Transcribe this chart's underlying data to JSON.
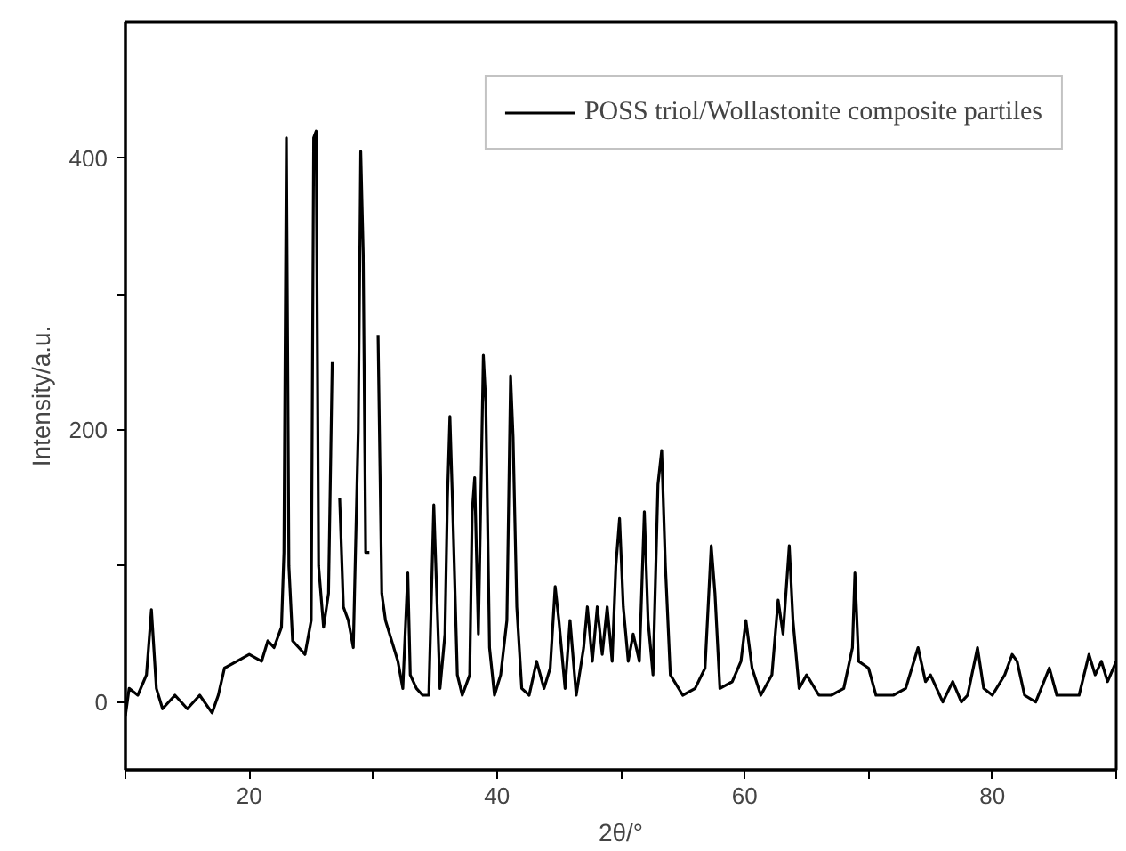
{
  "chart_data": {
    "type": "line",
    "xlabel": "2θ/°",
    "ylabel": "Intensity/a.u.",
    "xlim": [
      10,
      90
    ],
    "ylim": [
      -50,
      500
    ],
    "xticks": [
      {
        "value": 10,
        "label": null
      },
      20,
      {
        "value": 30,
        "label": null
      },
      40,
      {
        "value": 50,
        "label": null
      },
      60,
      {
        "value": 70,
        "label": null
      },
      80,
      {
        "value": 90,
        "label": null
      }
    ],
    "yticks": [
      0,
      {
        "value": 100,
        "label": null
      },
      200,
      {
        "value": 300,
        "label": null
      },
      400
    ],
    "grid": false,
    "legend": "top right",
    "marker": "none",
    "line_style": "solid",
    "series": [
      {
        "name": "POSS triol/Wollastonite composite partiles",
        "color": "#000000",
        "x": [
          10,
          10.3,
          11,
          11.7,
          12.1,
          12.5,
          13,
          14,
          15,
          16,
          17,
          17.5,
          18,
          19,
          20,
          21,
          21.5,
          22,
          22.6,
          22.8,
          23,
          23.2,
          23.5,
          24,
          24.5,
          25,
          25.2,
          25.4,
          25.6,
          26,
          26.4,
          26.7,
          26.9,
          27.1,
          27.3,
          27.6,
          28,
          28.4,
          28.8,
          29,
          29.2,
          29.4,
          29.7,
          29.9,
          30.2,
          30.4,
          30.7,
          31,
          31.5,
          32,
          32.4,
          32.8,
          33,
          33.5,
          34,
          34.5,
          34.9,
          35.1,
          35.4,
          35.8,
          36,
          36.2,
          36.4,
          36.8,
          37.2,
          37.8,
          38,
          38.2,
          38.5,
          38.9,
          39.1,
          39.4,
          39.8,
          40.3,
          40.8,
          41.1,
          41.3,
          41.6,
          42,
          42.6,
          43.2,
          43.8,
          44.3,
          44.7,
          45,
          45.5,
          45.9,
          46.4,
          47,
          47.3,
          47.7,
          48.1,
          48.5,
          48.9,
          49.3,
          49.6,
          49.9,
          50.2,
          50.6,
          51,
          51.5,
          51.9,
          52.2,
          52.6,
          53,
          53.3,
          53.6,
          54,
          55,
          56,
          56.8,
          57.3,
          57.6,
          58,
          59,
          59.7,
          60.1,
          60.6,
          61.3,
          62.2,
          62.7,
          63.1,
          63.6,
          63.9,
          64.4,
          65,
          66,
          67,
          68,
          68.7,
          68.9,
          69.2,
          70,
          70.6,
          72,
          73,
          74,
          74.6,
          75,
          76,
          76.8,
          77.5,
          78,
          78.8,
          79.3,
          80,
          81,
          81.6,
          82,
          82.6,
          83.5,
          84.6,
          85.2,
          86,
          87,
          87.8,
          88.3,
          88.8,
          89.3,
          90
        ],
        "values": [
          -10,
          10,
          5,
          20,
          68,
          10,
          -5,
          5,
          -5,
          5,
          -8,
          5,
          25,
          30,
          35,
          30,
          45,
          40,
          55,
          110,
          415,
          100,
          45,
          40,
          35,
          60,
          415,
          420,
          100,
          55,
          80,
          250,
          null,
          null,
          150,
          70,
          60,
          40,
          200,
          405,
          330,
          110,
          110,
          null,
          null,
          270,
          80,
          60,
          45,
          30,
          10,
          95,
          20,
          10,
          5,
          5,
          145,
          90,
          10,
          50,
          150,
          210,
          150,
          20,
          5,
          20,
          140,
          165,
          50,
          255,
          220,
          40,
          5,
          20,
          60,
          240,
          195,
          70,
          10,
          5,
          30,
          10,
          25,
          85,
          60,
          10,
          60,
          5,
          40,
          70,
          30,
          70,
          35,
          70,
          30,
          100,
          135,
          70,
          30,
          50,
          30,
          140,
          60,
          20,
          160,
          185,
          100,
          20,
          5,
          10,
          25,
          115,
          80,
          10,
          15,
          30,
          60,
          25,
          5,
          20,
          75,
          50,
          115,
          60,
          10,
          20,
          5,
          5,
          10,
          40,
          95,
          30,
          25,
          5,
          5,
          10,
          40,
          15,
          20,
          0,
          15,
          0,
          5,
          40,
          10,
          5,
          20,
          35,
          30,
          5,
          0,
          25,
          5,
          5,
          5,
          35,
          20,
          30,
          15,
          30
        ]
      }
    ]
  }
}
